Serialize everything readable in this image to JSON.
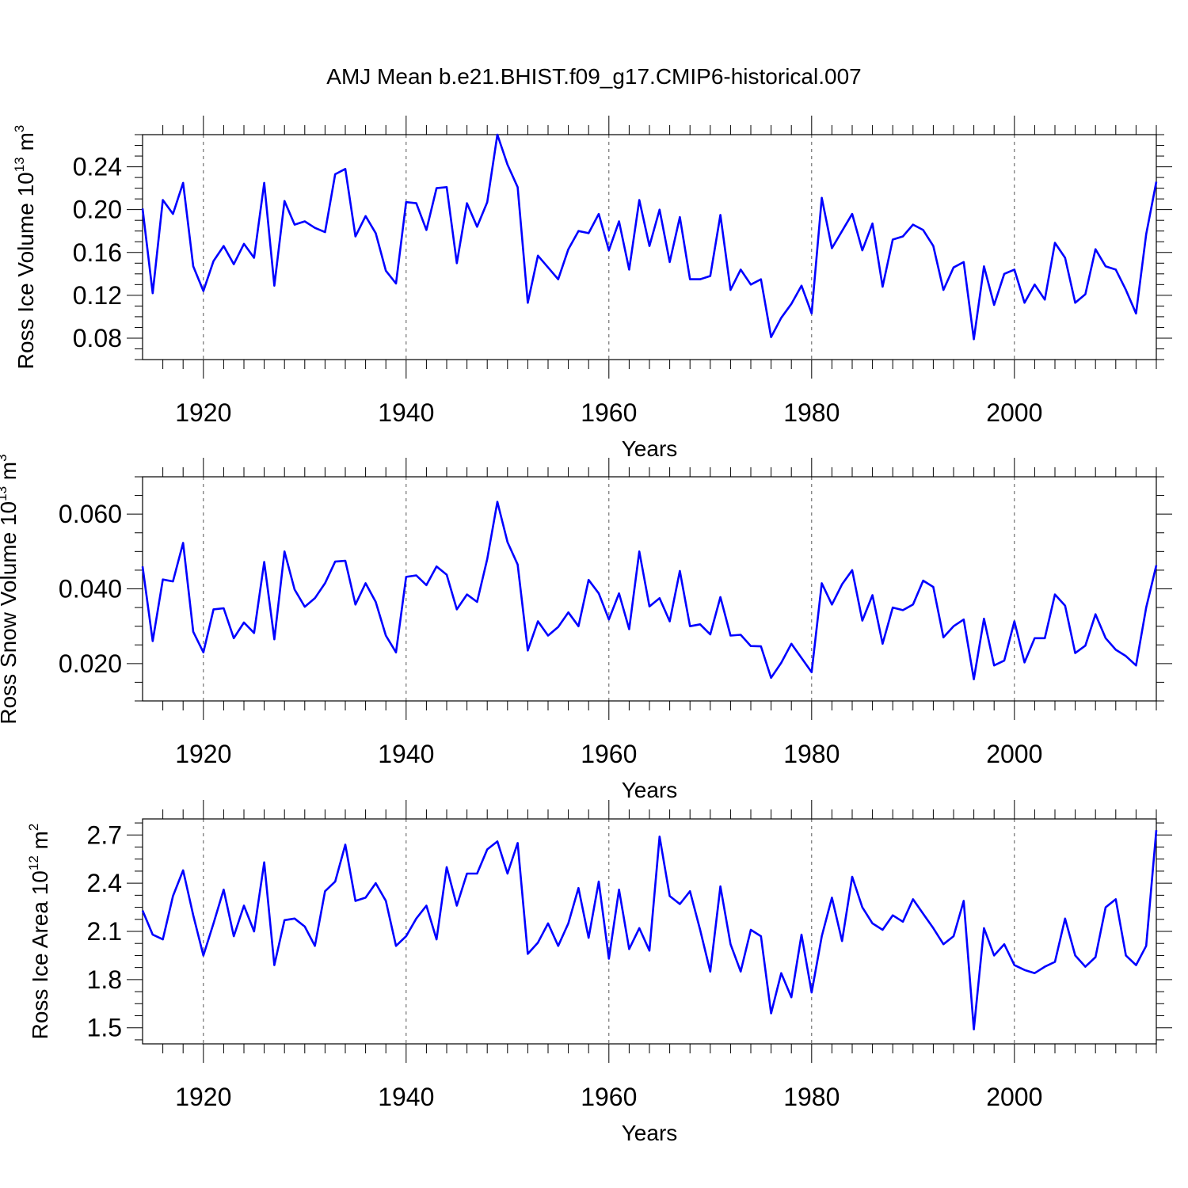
{
  "title": "AMJ Mean b.e21.BHIST.f09_g17.CMIP6-historical.007",
  "colors": {
    "series": "#0000ff",
    "axis": "#000000",
    "grid": "#555555",
    "background": "#ffffff"
  },
  "chart_data": [
    {
      "type": "line",
      "xlabel": "Years",
      "ylabel_main": "Ross Ice Volume 10",
      "ylabel_exp": "13",
      "ylabel_unit": " m",
      "ylabel_unit_exp": "3",
      "xlim": [
        1914,
        2014
      ],
      "ylim": [
        0.06,
        0.27
      ],
      "xticks": [
        "1920",
        "1940",
        "1960",
        "1980",
        "2000"
      ],
      "yticks": [
        "0.08",
        "0.12",
        "0.16",
        "0.20",
        "0.24"
      ],
      "grid": "vertical dashed at major x ticks",
      "x_start": 1914,
      "values": [
        0.201,
        0.122,
        0.209,
        0.196,
        0.225,
        0.147,
        0.124,
        0.152,
        0.166,
        0.149,
        0.168,
        0.155,
        0.225,
        0.129,
        0.208,
        0.186,
        0.189,
        0.183,
        0.179,
        0.233,
        0.238,
        0.175,
        0.194,
        0.178,
        0.143,
        0.131,
        0.207,
        0.206,
        0.181,
        0.22,
        0.221,
        0.15,
        0.206,
        0.184,
        0.207,
        0.27,
        0.242,
        0.221,
        0.113,
        0.157,
        0.146,
        0.135,
        0.163,
        0.18,
        0.178,
        0.196,
        0.162,
        0.189,
        0.144,
        0.209,
        0.166,
        0.2,
        0.151,
        0.193,
        0.135,
        0.135,
        0.138,
        0.195,
        0.125,
        0.144,
        0.13,
        0.135,
        0.081,
        0.099,
        0.112,
        0.129,
        0.103,
        0.211,
        0.164,
        0.18,
        0.196,
        0.162,
        0.187,
        0.128,
        0.172,
        0.175,
        0.186,
        0.181,
        0.166,
        0.125,
        0.146,
        0.151,
        0.079,
        0.147,
        0.111,
        0.14,
        0.144,
        0.113,
        0.13,
        0.116,
        0.169,
        0.155,
        0.113,
        0.121,
        0.163,
        0.147,
        0.144,
        0.125,
        0.103,
        0.177,
        0.226
      ]
    },
    {
      "type": "line",
      "xlabel": "Years",
      "ylabel_main": "Ross Snow Volume 10",
      "ylabel_exp": "13",
      "ylabel_unit": " m",
      "ylabel_unit_exp": "3",
      "xlim": [
        1914,
        2014
      ],
      "ylim": [
        0.01,
        0.07
      ],
      "xticks": [
        "1920",
        "1940",
        "1960",
        "1980",
        "2000"
      ],
      "yticks": [
        "0.020",
        "0.040",
        "0.060"
      ],
      "grid": "vertical dashed at major x ticks",
      "x_start": 1914,
      "values": [
        0.046,
        0.026,
        0.0425,
        0.042,
        0.0523,
        0.0285,
        0.023,
        0.0345,
        0.0348,
        0.0268,
        0.031,
        0.0282,
        0.0472,
        0.0265,
        0.05,
        0.0398,
        0.0352,
        0.0375,
        0.0415,
        0.0473,
        0.0475,
        0.0358,
        0.0415,
        0.0365,
        0.0275,
        0.023,
        0.0432,
        0.0436,
        0.041,
        0.046,
        0.0438,
        0.0345,
        0.0385,
        0.0365,
        0.048,
        0.0633,
        0.0525,
        0.0465,
        0.0235,
        0.0313,
        0.0275,
        0.0298,
        0.0337,
        0.03,
        0.0424,
        0.0388,
        0.0318,
        0.0388,
        0.0292,
        0.05,
        0.0353,
        0.0375,
        0.0313,
        0.0448,
        0.03,
        0.0305,
        0.0278,
        0.0378,
        0.0275,
        0.0277,
        0.0247,
        0.0246,
        0.0162,
        0.0202,
        0.0253,
        0.0215,
        0.0177,
        0.0415,
        0.0358,
        0.0412,
        0.045,
        0.0315,
        0.0383,
        0.0253,
        0.035,
        0.0343,
        0.0358,
        0.0422,
        0.0405,
        0.027,
        0.03,
        0.0318,
        0.0158,
        0.032,
        0.0195,
        0.0208,
        0.0313,
        0.0203,
        0.0268,
        0.0268,
        0.0385,
        0.0355,
        0.0228,
        0.0248,
        0.0332,
        0.0268,
        0.0237,
        0.022,
        0.0195,
        0.035,
        0.0463
      ]
    },
    {
      "type": "line",
      "xlabel": "Years",
      "ylabel_main": "Ross Ice Area 10",
      "ylabel_exp": "12",
      "ylabel_unit": " m",
      "ylabel_unit_exp": "2",
      "xlim": [
        1914,
        2014
      ],
      "ylim": [
        1.4,
        2.8
      ],
      "xticks": [
        "1920",
        "1940",
        "1960",
        "1980",
        "2000"
      ],
      "yticks": [
        "1.5",
        "1.8",
        "2.1",
        "2.4",
        "2.7"
      ],
      "grid": "vertical dashed at major x ticks",
      "x_start": 1914,
      "values": [
        2.23,
        2.08,
        2.05,
        2.32,
        2.48,
        2.2,
        1.95,
        2.15,
        2.36,
        2.07,
        2.26,
        2.1,
        2.53,
        1.89,
        2.17,
        2.18,
        2.13,
        2.01,
        2.35,
        2.41,
        2.64,
        2.29,
        2.31,
        2.4,
        2.29,
        2.01,
        2.07,
        2.18,
        2.26,
        2.05,
        2.5,
        2.26,
        2.46,
        2.46,
        2.61,
        2.66,
        2.46,
        2.65,
        1.96,
        2.03,
        2.15,
        2.01,
        2.15,
        2.37,
        2.06,
        2.41,
        1.93,
        2.36,
        1.99,
        2.12,
        1.98,
        2.69,
        2.32,
        2.27,
        2.35,
        2.11,
        1.85,
        2.38,
        2.02,
        1.85,
        2.11,
        2.07,
        1.59,
        1.84,
        1.69,
        2.08,
        1.72,
        2.07,
        2.31,
        2.04,
        2.44,
        2.25,
        2.15,
        2.11,
        2.2,
        2.16,
        2.3,
        2.21,
        2.12,
        2.02,
        2.07,
        2.29,
        1.49,
        2.12,
        1.95,
        2.02,
        1.89,
        1.86,
        1.84,
        1.88,
        1.91,
        2.18,
        1.95,
        1.88,
        1.94,
        2.25,
        2.3,
        1.95,
        1.89,
        2.01,
        2.73
      ]
    }
  ]
}
